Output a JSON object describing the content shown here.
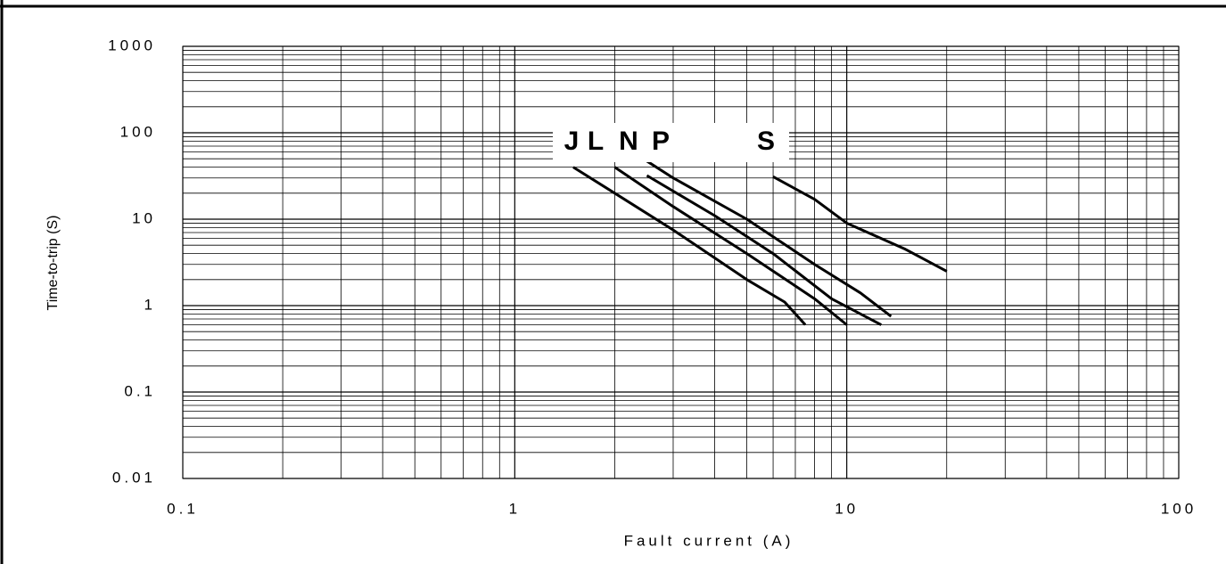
{
  "chart_data": {
    "type": "line",
    "xlabel": "Fault current (A)",
    "ylabel": "Time-to-trip (S)",
    "xscale": "log",
    "yscale": "log",
    "xlim": [
      0.1,
      100
    ],
    "ylim": [
      0.01,
      1000
    ],
    "xticks": [
      0.1,
      1,
      10,
      100
    ],
    "yticks": [
      0.01,
      0.1,
      1,
      10,
      100,
      1000
    ],
    "grid": true,
    "series": [
      {
        "name": "J",
        "color": "#000000",
        "x": [
          1.5,
          2,
          3,
          5,
          6.5,
          7.5
        ],
        "values": [
          40,
          20,
          7.5,
          2,
          1.1,
          0.6
        ]
      },
      {
        "name": "L",
        "color": "#000000",
        "x": [
          2,
          3,
          5,
          8,
          10
        ],
        "values": [
          40,
          14,
          4,
          1.2,
          0.6
        ]
      },
      {
        "name": "N",
        "color": "#000000",
        "x": [
          2.5,
          4,
          6,
          9,
          12.7
        ],
        "values": [
          32,
          11,
          4,
          1.2,
          0.6
        ]
      },
      {
        "name": "P",
        "color": "#000000",
        "x": [
          2.5,
          3,
          5,
          8,
          11,
          13.6
        ],
        "values": [
          47,
          30,
          10,
          3,
          1.4,
          0.75
        ]
      },
      {
        "name": "S",
        "color": "#000000",
        "x": [
          6,
          8,
          10,
          15,
          20
        ],
        "values": [
          31,
          17,
          9,
          4.5,
          2.5
        ]
      }
    ]
  }
}
